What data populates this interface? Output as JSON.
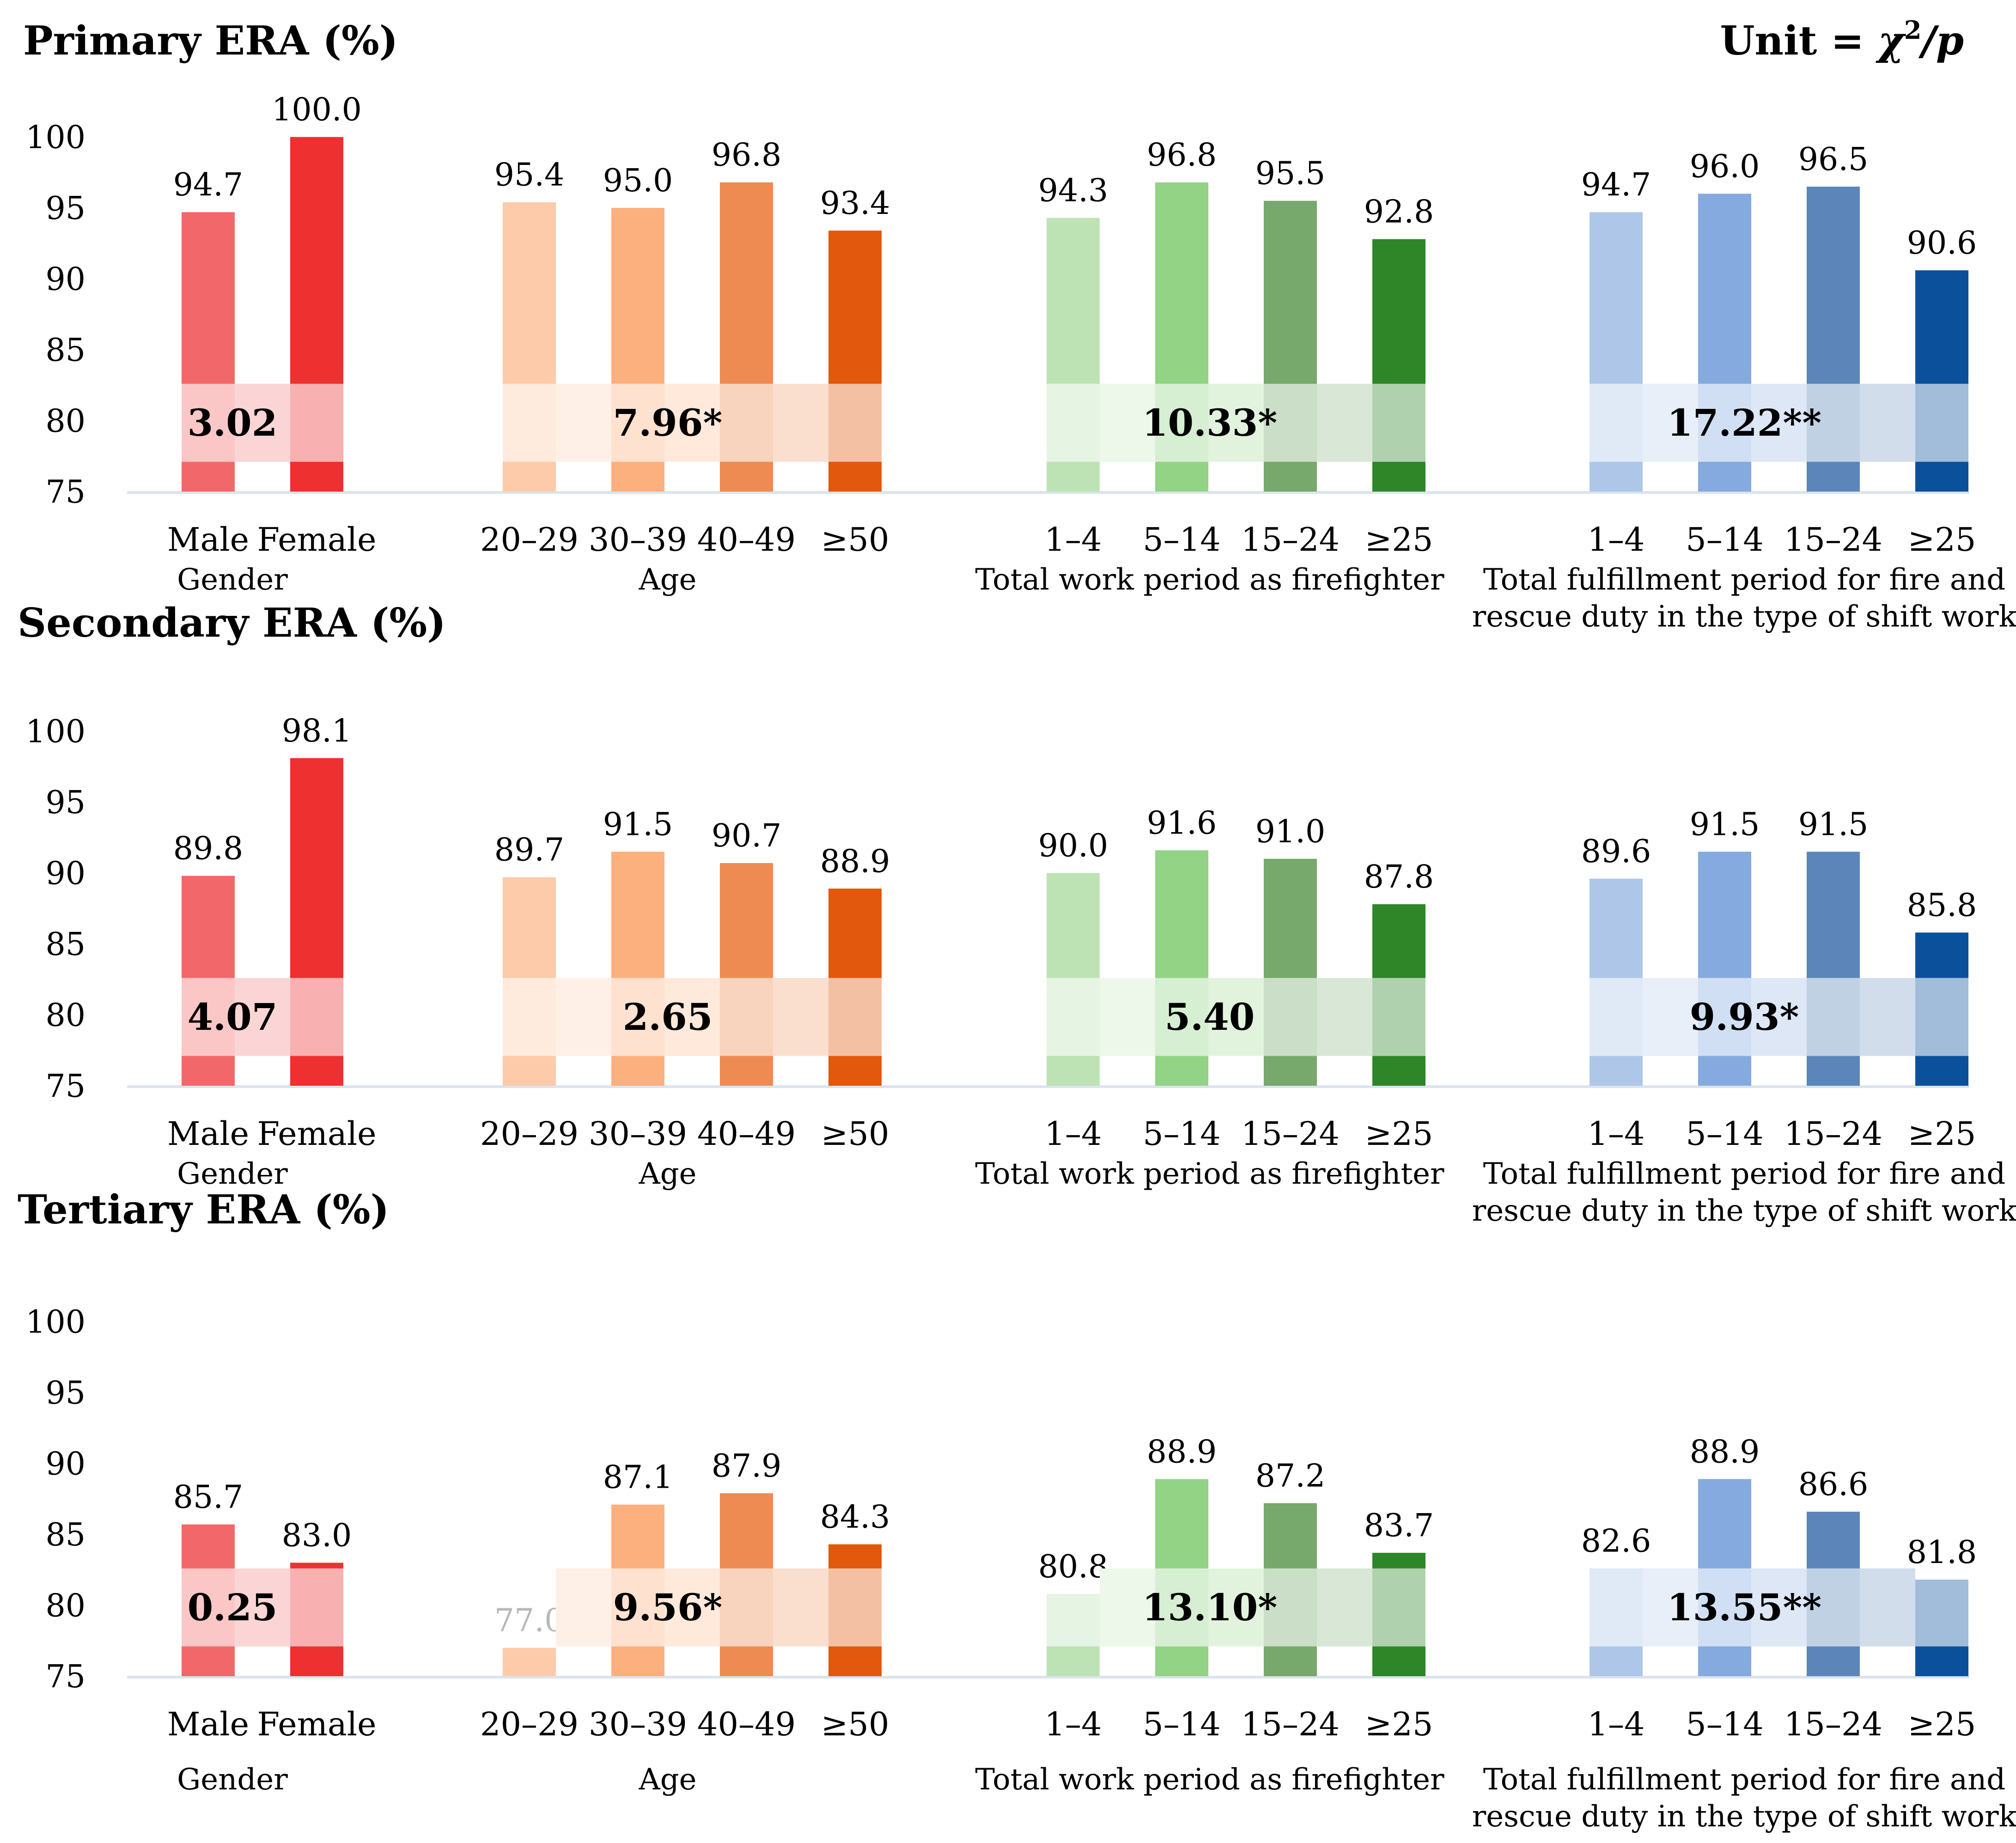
{
  "unit_label": {
    "prefix": "Unit = ",
    "chi": "χ",
    "sup": "2",
    "suffix": "/p"
  },
  "chart_data": [
    {
      "type": "bar",
      "title": "Primary ERA (%)",
      "ylim": [
        75,
        100
      ],
      "yticks": [
        "100",
        "95",
        "90",
        "85",
        "80",
        "75"
      ],
      "groups": [
        {
          "name": "Gender",
          "name_lines": [
            "Gender"
          ],
          "categories": [
            "Male",
            "Female"
          ],
          "values": [
            94.7,
            100.0
          ],
          "labels": [
            "94.7",
            "100.0"
          ],
          "statistic": "3.02",
          "colors": [
            "#f2686a",
            "#ee3030"
          ]
        },
        {
          "name": "Age",
          "name_lines": [
            "Age"
          ],
          "categories": [
            "20–29",
            "30–39",
            "40–49",
            "≥50"
          ],
          "values": [
            95.4,
            95.0,
            96.8,
            93.4
          ],
          "labels": [
            "95.4",
            "95.0",
            "96.8",
            "93.4"
          ],
          "statistic": "7.96*",
          "colors": [
            "#fdcba9",
            "#fcb07e",
            "#ed8b52",
            "#e2580c"
          ]
        },
        {
          "name": "Total work period as firefighter",
          "name_lines": [
            "Total work period as firefighter"
          ],
          "categories": [
            "1–4",
            "5–14",
            "15–24",
            "≥25"
          ],
          "values": [
            94.3,
            96.8,
            95.5,
            92.8
          ],
          "labels": [
            "94.3",
            "96.8",
            "95.5",
            "92.8"
          ],
          "statistic": "10.33*",
          "colors": [
            "#bde3b5",
            "#93d386",
            "#76a96b",
            "#2e8629"
          ]
        },
        {
          "name": "Total fulfillment period for fire and rescue duty in the type of shift work",
          "name_lines": [
            "Total fulfillment period for fire and",
            "rescue duty in the type of shift work"
          ],
          "categories": [
            "1–4",
            "5–14",
            "15–24",
            "≥25"
          ],
          "values": [
            94.7,
            96.0,
            96.5,
            90.6
          ],
          "labels": [
            "94.7",
            "96.0",
            "96.5",
            "90.6"
          ],
          "statistic": "17.22**",
          "colors": [
            "#aec7e9",
            "#84aadf",
            "#5c86b9",
            "#0b509a"
          ]
        }
      ]
    },
    {
      "type": "bar",
      "title": "Secondary ERA (%)",
      "ylim": [
        75,
        100
      ],
      "yticks": [
        "100",
        "95",
        "90",
        "85",
        "80",
        "75"
      ],
      "groups": [
        {
          "name": "Gender",
          "name_lines": [
            "Gender"
          ],
          "categories": [
            "Male",
            "Female"
          ],
          "values": [
            89.8,
            98.1
          ],
          "labels": [
            "89.8",
            "98.1"
          ],
          "statistic": "4.07",
          "colors": [
            "#f2686a",
            "#ee3030"
          ]
        },
        {
          "name": "Age",
          "name_lines": [
            "Age"
          ],
          "categories": [
            "20–29",
            "30–39",
            "40–49",
            "≥50"
          ],
          "values": [
            89.7,
            91.5,
            90.7,
            88.9
          ],
          "labels": [
            "89.7",
            "91.5",
            "90.7",
            "88.9"
          ],
          "statistic": "2.65",
          "colors": [
            "#fdcba9",
            "#fcb07e",
            "#ed8b52",
            "#e2580c"
          ]
        },
        {
          "name": "Total work period as firefighter",
          "name_lines": [
            "Total work period as firefighter"
          ],
          "categories": [
            "1–4",
            "5–14",
            "15–24",
            "≥25"
          ],
          "values": [
            90.0,
            91.6,
            91.0,
            87.8
          ],
          "labels": [
            "90.0",
            "91.6",
            "91.0",
            "87.8"
          ],
          "statistic": "5.40",
          "colors": [
            "#bde3b5",
            "#93d386",
            "#76a96b",
            "#2e8629"
          ]
        },
        {
          "name": "Total fulfillment period for fire and rescue duty in the type of shift work",
          "name_lines": [
            "Total fulfillment period for fire and",
            "rescue duty in the type of shift work"
          ],
          "categories": [
            "1–4",
            "5–14",
            "15–24",
            "≥25"
          ],
          "values": [
            89.6,
            91.5,
            91.5,
            85.8
          ],
          "labels": [
            "89.6",
            "91.5",
            "91.5",
            "85.8"
          ],
          "statistic": "9.93*",
          "colors": [
            "#aec7e9",
            "#84aadf",
            "#5c86b9",
            "#0b509a"
          ]
        }
      ]
    },
    {
      "type": "bar",
      "title": "Tertiary ERA (%)",
      "ylim": [
        75,
        100
      ],
      "yticks": [
        "100",
        "95",
        "90",
        "85",
        "80",
        "75"
      ],
      "groups": [
        {
          "name": "Gender",
          "name_lines": [
            "Gender"
          ],
          "categories": [
            "Male",
            "Female"
          ],
          "values": [
            85.7,
            83.0
          ],
          "labels": [
            "85.7",
            "83.0"
          ],
          "statistic": "0.25",
          "colors": [
            "#f2686a",
            "#ee3030"
          ]
        },
        {
          "name": "Age",
          "name_lines": [
            "Age"
          ],
          "categories": [
            "20–29",
            "30–39",
            "40–49",
            "≥50"
          ],
          "values": [
            77.0,
            87.1,
            87.9,
            84.3
          ],
          "labels": [
            "77.0",
            "87.1",
            "87.9",
            "84.3"
          ],
          "statistic": "9.56*",
          "colors": [
            "#fdcba9",
            "#fcb07e",
            "#ed8b52",
            "#e2580c"
          ]
        },
        {
          "name": "Total work period as firefighter",
          "name_lines": [
            "Total work period as firefighter"
          ],
          "categories": [
            "1–4",
            "5–14",
            "15–24",
            "≥25"
          ],
          "values": [
            80.8,
            88.9,
            87.2,
            83.7
          ],
          "labels": [
            "80.8",
            "88.9",
            "87.2",
            "83.7"
          ],
          "statistic": "13.10*",
          "colors": [
            "#bde3b5",
            "#93d386",
            "#76a96b",
            "#2e8629"
          ]
        },
        {
          "name": "Total fulfillment period for fire and rescue duty in the type of shift work",
          "name_lines": [
            "Total fulfillment period for fire and",
            "rescue duty in the type of shift work"
          ],
          "categories": [
            "1–4",
            "5–14",
            "15–24",
            "≥25"
          ],
          "values": [
            82.6,
            88.9,
            86.6,
            81.8
          ],
          "labels": [
            "82.6",
            "88.9",
            "86.6",
            "81.8"
          ],
          "statistic": "13.55**",
          "colors": [
            "#aec7e9",
            "#84aadf",
            "#5c86b9",
            "#0b509a"
          ]
        }
      ]
    }
  ]
}
